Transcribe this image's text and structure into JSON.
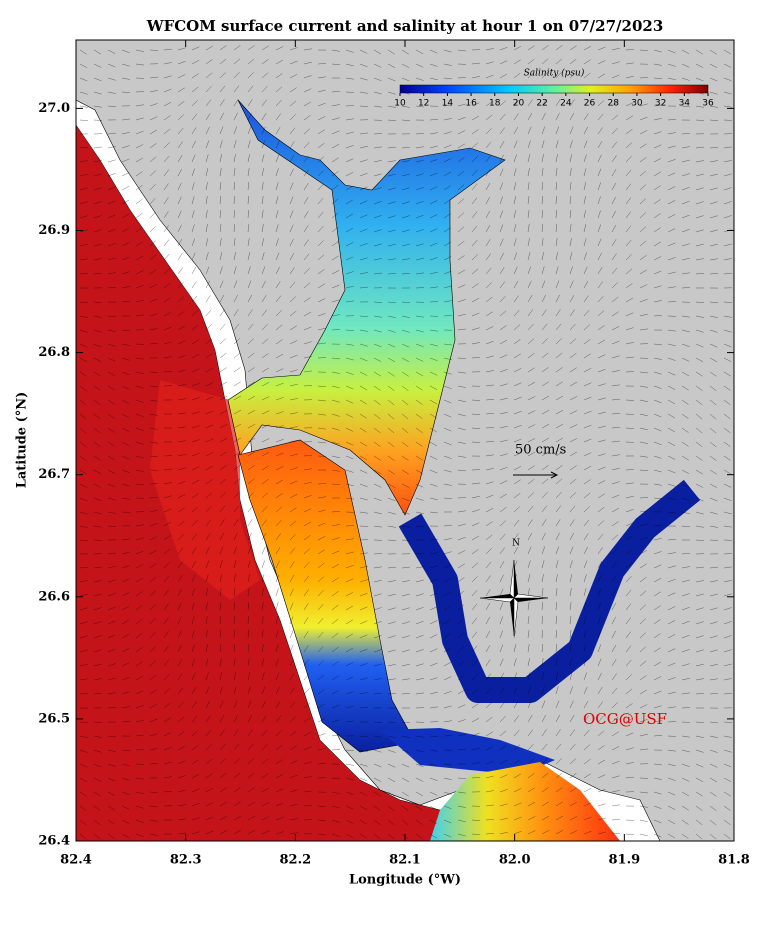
{
  "chart_data": {
    "type": "map",
    "title": "WFCOM surface current and salinity at hour  1 on 07/27/2023",
    "xlabel": "Longitude (°W)",
    "ylabel": "Latitude (°N)",
    "xlim": [
      82.4,
      81.8
    ],
    "ylim": [
      26.4,
      27.056
    ],
    "xticks": [
      82.4,
      82.3,
      82.2,
      82.1,
      {
        "value": 82,
        "label": "82.0"
      },
      81.9,
      81.8
    ],
    "yticks": [
      26.4,
      26.5,
      26.6,
      26.7,
      26.8,
      26.9,
      {
        "value": 27,
        "label": "27.0"
      }
    ],
    "colorbar": {
      "label": "Salinity (psu)",
      "lim": [
        10,
        36
      ],
      "ticks": [
        10,
        12,
        14,
        16,
        18,
        20,
        22,
        24,
        26,
        28,
        30,
        32,
        34,
        36
      ]
    },
    "annotations": {
      "scale": "50 cm/s",
      "north": "N",
      "credit": "OCG@USF"
    }
  }
}
